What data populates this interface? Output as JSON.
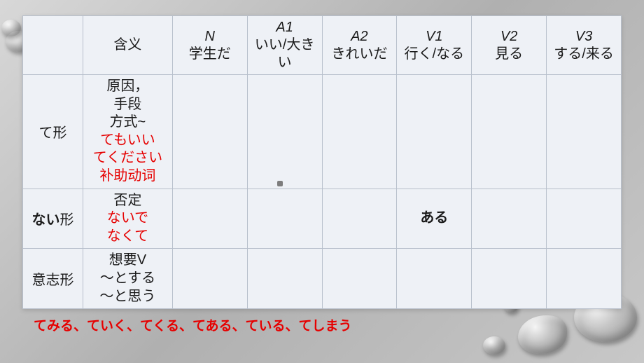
{
  "columns": [
    {
      "top": "",
      "sub": "含义"
    },
    {
      "top": "N",
      "sub": "学生だ"
    },
    {
      "top": "A1",
      "sub": "いい/大きい"
    },
    {
      "top": "A2",
      "sub": "きれいだ"
    },
    {
      "top": "V1",
      "sub": "行く/なる"
    },
    {
      "top": "V2",
      "sub": "見る"
    },
    {
      "top": "V3",
      "sub": "する/来る"
    }
  ],
  "rows": {
    "te": {
      "label": "て形",
      "meaning_black": [
        "原因，",
        "手段",
        "方式~"
      ],
      "meaning_red": [
        "てもいい",
        "てください",
        "补助动词"
      ]
    },
    "nai": {
      "label_html": "<b>ない</b>形",
      "meaning_black": [
        "否定"
      ],
      "meaning_red": [
        "ないで",
        "なくて"
      ],
      "v1": "ある"
    },
    "ishi": {
      "label": "意志形",
      "meaning_black": [
        "想要V",
        "〜とする",
        "〜と思う"
      ],
      "meaning_red": []
    }
  },
  "footer": "てみる、ていく、てくる、てある、ている、てしまう"
}
